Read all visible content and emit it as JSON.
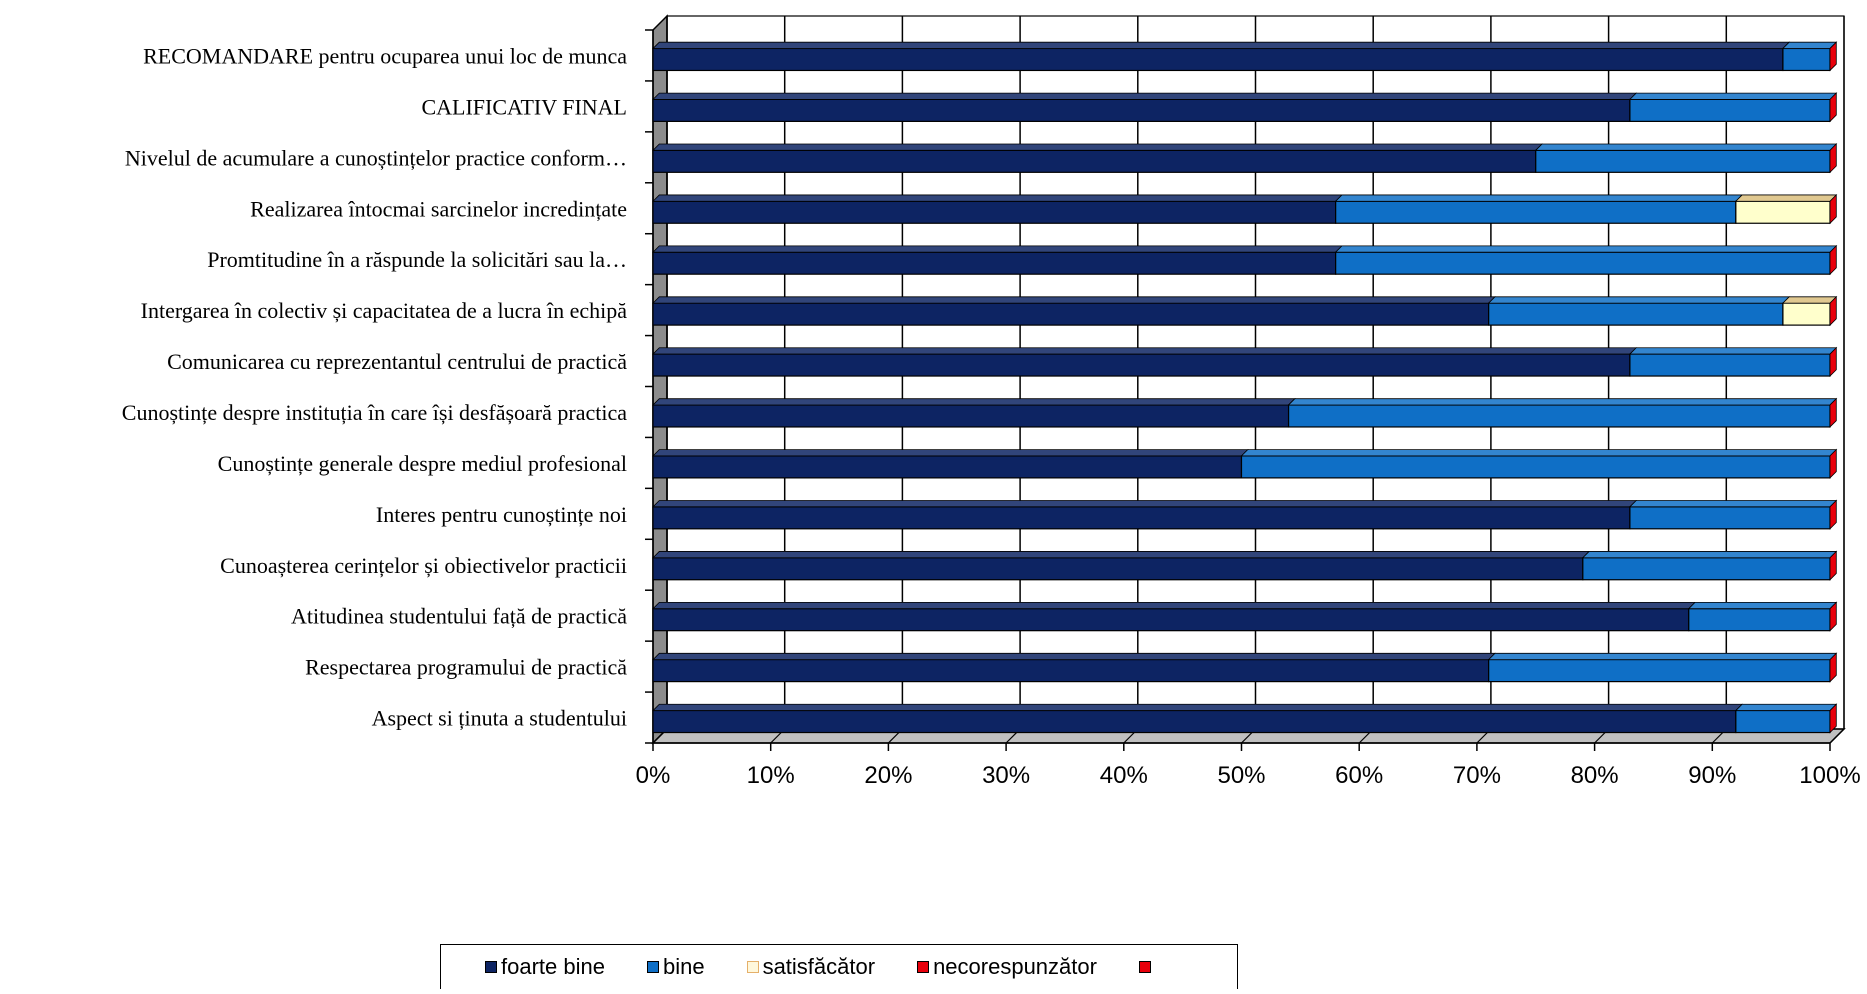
{
  "chart_data": {
    "type": "bar",
    "orientation": "horizontal",
    "stacked": "percent",
    "categories": [
      "Aspect si ținuta a studentului",
      "Respectarea programului de practică",
      "Atitudinea studentului față de practică",
      "Cunoașterea cerințelor și obiectivelor practicii",
      "Interes pentru cunoștințe noi",
      "Cunoștințe generale despre mediul profesional",
      "Cunoștințe despre instituția în care își desfășoară practica",
      "Comunicarea cu reprezentantul centrului de practică",
      "Intergarea în colectiv și capacitatea de a lucra în echipă",
      "Promtitudine în a răspunde la solicitări sau la…",
      "Realizarea întocmai sarcinelor incredințate",
      "Nivelul de acumulare a cunoștințelor practice conform…",
      "CALIFICATIV FINAL",
      "RECOMANDARE pentru ocuparea unui loc de munca"
    ],
    "series": [
      {
        "name": "foarte bine",
        "color": "#0d2463",
        "values": [
          92,
          71,
          88,
          79,
          83,
          50,
          54,
          83,
          71,
          58,
          58,
          75,
          83,
          96
        ]
      },
      {
        "name": "bine",
        "color": "#0f6fc6",
        "values": [
          8,
          29,
          12,
          21,
          17,
          50,
          46,
          17,
          25,
          42,
          34,
          25,
          17,
          4
        ]
      },
      {
        "name": "satisfăcător",
        "color": "#ffffcc",
        "values": [
          0,
          0,
          0,
          0,
          0,
          0,
          0,
          0,
          4,
          0,
          8,
          0,
          0,
          0
        ]
      },
      {
        "name": "necorespunzător",
        "color": "#e8000b",
        "values": [
          0,
          0,
          0,
          0,
          0,
          0,
          0,
          0,
          0,
          0,
          0,
          0,
          0,
          0
        ]
      },
      {
        "name": "",
        "color": "#e8000b",
        "values": [
          0,
          0,
          0,
          0,
          0,
          0,
          0,
          0,
          0,
          0,
          0,
          0,
          0,
          0
        ]
      }
    ],
    "x_ticks": [
      "0%",
      "10%",
      "20%",
      "30%",
      "40%",
      "50%",
      "60%",
      "70%",
      "80%",
      "90%",
      "100%"
    ],
    "xlim": [
      0,
      100
    ],
    "grid": true,
    "legend_position": "bottom",
    "title": "",
    "xlabel": "",
    "ylabel": ""
  }
}
